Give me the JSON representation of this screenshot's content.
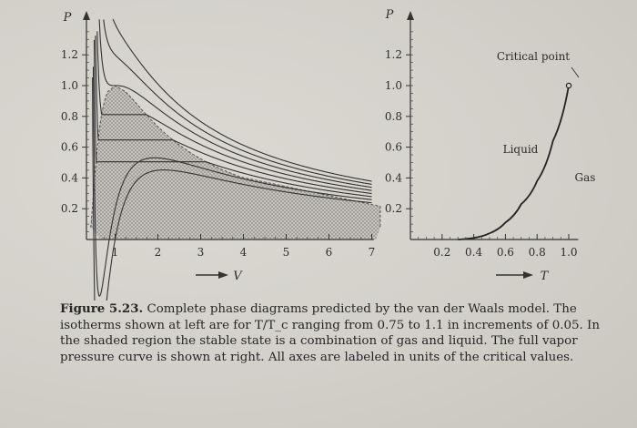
{
  "figure": {
    "number_label": "Figure 5.23.",
    "caption_text": "Complete phase diagrams predicted by the van der Waals model. The isotherms shown at left are for T/T_c ranging from 0.75 to 1.1 in increments of 0.05. In the shaded region the stable state is a combination of gas and liquid. The full vapor pressure curve is shown at right. All axes are labeled in units of the critical values."
  },
  "left_plot": {
    "y_axis_label": "P",
    "x_axis_label": "V",
    "y_tick_labels": [
      "1.2",
      "1.0",
      "0.8",
      "0.6",
      "0.4",
      "0.2"
    ],
    "x_tick_labels": [
      "1",
      "2",
      "3",
      "4",
      "5",
      "6",
      "7"
    ]
  },
  "right_plot": {
    "y_axis_label": "P",
    "x_axis_label": "T",
    "y_tick_labels": [
      "1.2",
      "1.0",
      "0.8",
      "0.6",
      "0.4",
      "0.2"
    ],
    "x_tick_labels": [
      "0.2",
      "0.4",
      "0.6",
      "0.8",
      "1.0"
    ],
    "annotations": {
      "critical_point": "Critical point",
      "liquid": "Liquid",
      "gas": "Gas"
    }
  },
  "chart_data": [
    {
      "type": "line",
      "xlim": [
        0.33,
        7
      ],
      "ylim": [
        0,
        1.45
      ],
      "grid": false,
      "series": [
        {
          "t": 0.75
        },
        {
          "t": 0.8
        },
        {
          "t": 0.85
        },
        {
          "t": 0.9
        },
        {
          "t": 0.95
        },
        {
          "t": 1.0
        },
        {
          "t": 1.05
        },
        {
          "t": 1.1
        }
      ],
      "coexistence_region": "shaded"
    },
    {
      "type": "line",
      "xlim": [
        0,
        1.05
      ],
      "ylim": [
        0,
        1.45
      ],
      "grid": false,
      "series": [
        {
          "x": [
            0.3,
            0.4,
            0.5,
            0.6,
            0.7,
            0.8,
            0.9,
            1.0
          ],
          "y": [
            0.0,
            0.01,
            0.04,
            0.11,
            0.23,
            0.38,
            0.64,
            1.0
          ]
        }
      ],
      "critical_point": {
        "x": 1.0,
        "y": 1.0
      }
    }
  ]
}
